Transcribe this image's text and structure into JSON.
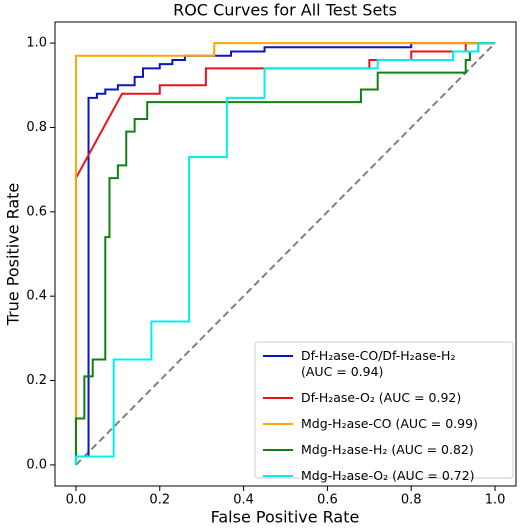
{
  "chart_data": {
    "type": "line",
    "title": "ROC Curves for All Test Sets",
    "x_label": "False Positive Rate",
    "y_label": "True Positive Rate",
    "xlim": [
      -0.05,
      1.05
    ],
    "ylim": [
      -0.05,
      1.05
    ],
    "xticks": [
      {
        "value": 0,
        "label": "0.0"
      },
      0.2,
      0.4,
      0.6,
      0.8,
      {
        "value": 1,
        "label": "1.0"
      }
    ],
    "yticks": [
      {
        "value": 0,
        "label": "0.0"
      },
      0.2,
      0.4,
      0.6,
      0.8,
      {
        "value": 1,
        "label": "1.0"
      }
    ],
    "legend": "lower right",
    "series": [
      {
        "name": "Df-H₂ase-CO/Df-H₂ase-H₂\n(AUC = 0.94)",
        "color": "#0a14c8",
        "x": [
          0,
          0,
          0.03,
          0.03,
          0.05,
          0.05,
          0.07,
          0.07,
          0.1,
          0.1,
          0.14,
          0.14,
          0.16,
          0.16,
          0.2,
          0.2,
          0.23,
          0.23,
          0.26,
          0.26,
          0.37,
          0.37,
          0.45,
          0.45,
          0.8,
          0.8,
          1
        ],
        "values": [
          0,
          0.02,
          0.02,
          0.87,
          0.87,
          0.88,
          0.88,
          0.89,
          0.89,
          0.9,
          0.9,
          0.92,
          0.92,
          0.94,
          0.94,
          0.95,
          0.95,
          0.96,
          0.96,
          0.97,
          0.97,
          0.98,
          0.98,
          0.99,
          0.99,
          1,
          1
        ]
      },
      {
        "name": "Df-H₂ase-O₂ (AUC = 0.92)",
        "color": "#e8141c",
        "x": [
          0,
          0,
          0.11,
          0.2,
          0.2,
          0.31,
          0.31,
          0.7,
          0.7,
          0.8,
          0.8,
          0.93,
          0.93,
          1
        ],
        "values": [
          0,
          0.68,
          0.88,
          0.88,
          0.9,
          0.9,
          0.94,
          0.94,
          0.96,
          0.96,
          0.98,
          0.98,
          1,
          1
        ]
      },
      {
        "name": "Mdg-H₂ase-CO (AUC = 0.99)",
        "color": "#ffa500",
        "x": [
          0,
          0,
          0.33,
          0.33,
          1
        ],
        "values": [
          0,
          0.97,
          0.97,
          1,
          1
        ]
      },
      {
        "name": "Mdg-H₂ase-H₂ (AUC = 0.82)",
        "color": "#118011",
        "x": [
          0,
          0,
          0.02,
          0.02,
          0.04,
          0.04,
          0.07,
          0.07,
          0.08,
          0.08,
          0.1,
          0.1,
          0.12,
          0.12,
          0.14,
          0.14,
          0.17,
          0.17,
          0.68,
          0.68,
          0.72,
          0.72,
          0.93,
          0.93,
          0.94,
          0.94,
          0.96,
          0.96,
          1
        ],
        "values": [
          0,
          0.11,
          0.11,
          0.21,
          0.21,
          0.25,
          0.25,
          0.54,
          0.54,
          0.68,
          0.68,
          0.71,
          0.71,
          0.79,
          0.79,
          0.82,
          0.82,
          0.86,
          0.86,
          0.89,
          0.89,
          0.93,
          0.93,
          0.96,
          0.96,
          0.98,
          0.98,
          1,
          1
        ]
      },
      {
        "name": "Mdg-H₂ase-O₂ (AUC = 0.72)",
        "color": "#00f0f0",
        "x": [
          0,
          0,
          0.09,
          0.09,
          0.18,
          0.18,
          0.27,
          0.27,
          0.36,
          0.36,
          0.45,
          0.45,
          0.72,
          0.72,
          0.9,
          0.9,
          0.96,
          0.96,
          1
        ],
        "values": [
          0,
          0.02,
          0.02,
          0.25,
          0.25,
          0.34,
          0.34,
          0.73,
          0.73,
          0.87,
          0.87,
          0.94,
          0.94,
          0.96,
          0.96,
          0.98,
          0.98,
          1,
          1
        ]
      }
    ],
    "reference_line": {
      "x": [
        0,
        1
      ],
      "values": [
        0,
        1
      ],
      "color": "#808080"
    }
  }
}
